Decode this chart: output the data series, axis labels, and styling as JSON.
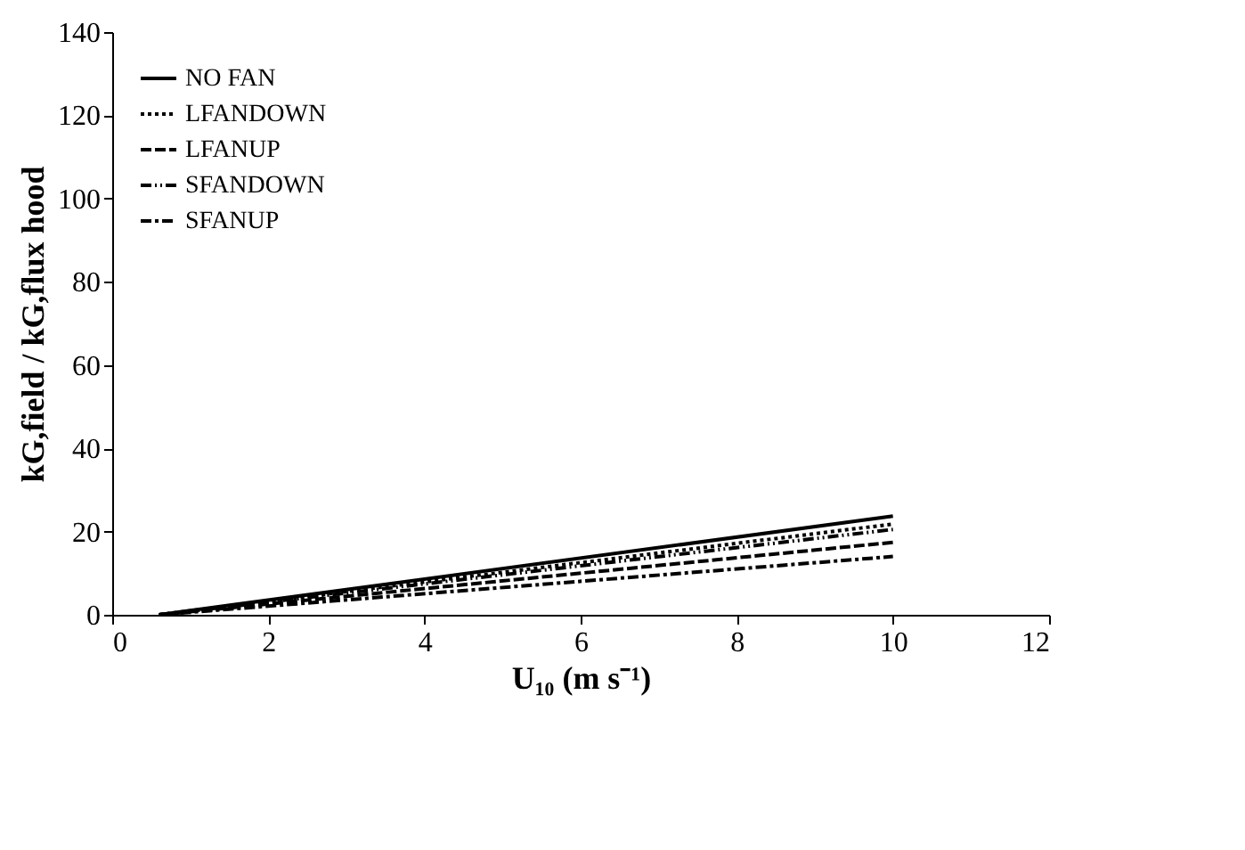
{
  "chart_data": {
    "type": "line",
    "xlabel": "U₁₀ (m s⁻¹)",
    "ylabel": "kG,field / kG,flux hood",
    "x": [
      0.6,
      10
    ],
    "series": [
      {
        "name": "NO FAN",
        "color": "#000000",
        "values": [
          0,
          23.7
        ],
        "line_style": "solid"
      },
      {
        "name": "LFANDOWN",
        "color": "#000000",
        "values": [
          0,
          21.8
        ],
        "line_style": "dotted"
      },
      {
        "name": "LFANUP",
        "color": "#000000",
        "values": [
          0,
          17.4
        ],
        "line_style": "dashed"
      },
      {
        "name": "SFANDOWN",
        "color": "#000000",
        "values": [
          0,
          20.5
        ],
        "line_style": "dashdotdot"
      },
      {
        "name": "SFANUP",
        "color": "#000000",
        "values": [
          0,
          14
        ],
        "line_style": "dashdot"
      }
    ],
    "xlim": [
      0,
      12
    ],
    "ylim": [
      0,
      140
    ],
    "xticks": [
      0,
      2,
      4,
      6,
      8,
      10,
      12
    ],
    "yticks": [
      0,
      20,
      40,
      60,
      80,
      100,
      120,
      140
    ],
    "grid": false,
    "legend": "top left",
    "marker": "none"
  }
}
